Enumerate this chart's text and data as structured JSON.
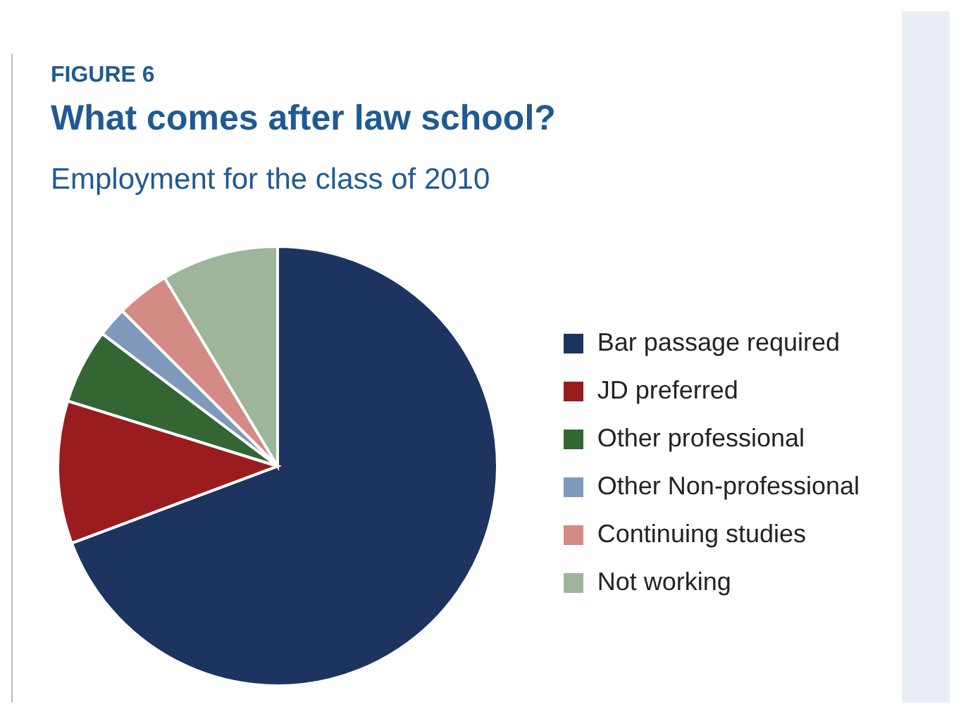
{
  "chart_data": {
    "type": "pie",
    "subtitle": "FIGURE 6",
    "title": "What comes after law school?",
    "annotations": [
      "Employment for the class of 2010"
    ],
    "categories": [
      "Bar passage required",
      "JD preferred",
      "Other professional",
      "Other Non-professional",
      "Continuing studies",
      "Not working"
    ],
    "values": [
      69.3,
      10.5,
      5.5,
      2.2,
      3.9,
      8.6
    ],
    "colors": [
      "#1d3461",
      "#9b1c1f",
      "#336633",
      "#7f99bb",
      "#d48a85",
      "#9db59a"
    ],
    "legend": "right"
  }
}
